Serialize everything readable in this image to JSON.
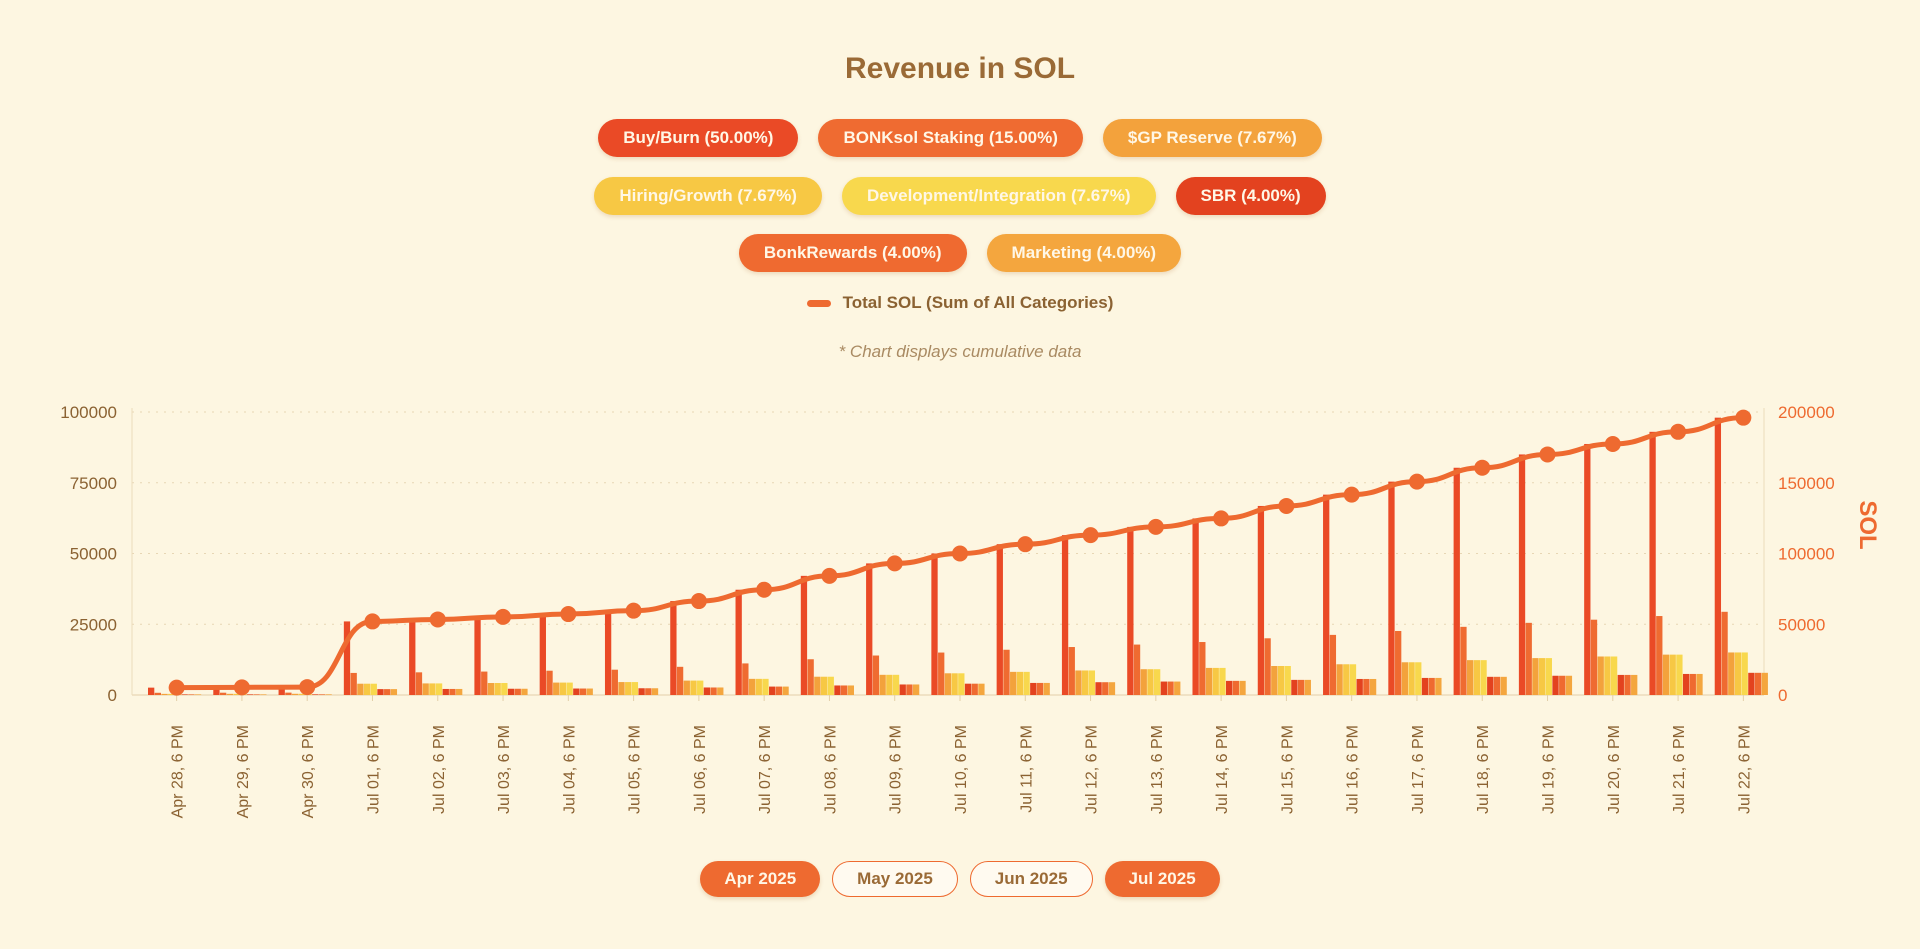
{
  "header": {
    "note": "* Chart displays cumulative data"
  },
  "legend": {
    "items": [
      {
        "label": "Buy/Burn (50.00%)",
        "color": "#ea4a26"
      },
      {
        "label": "BONKsol Staking (15.00%)",
        "color": "#ef6b31"
      },
      {
        "label": "$GP Reserve (7.67%)",
        "color": "#f3a23c"
      },
      {
        "label": "Hiring/Growth (7.67%)",
        "color": "#f7c844"
      },
      {
        "label": "Development/Integration (7.67%)",
        "color": "#f8d84d"
      },
      {
        "label": "SBR (4.00%)",
        "color": "#e3421f"
      },
      {
        "label": "BonkRewards (4.00%)",
        "color": "#ef6a30"
      },
      {
        "label": "Marketing (4.00%)",
        "color": "#f4a63e"
      }
    ],
    "total_label": "Total SOL (Sum of All Categories)",
    "total_color": "#ee6a30"
  },
  "month_filters": [
    {
      "label": "Apr 2025",
      "active": true
    },
    {
      "label": "May 2025",
      "active": false
    },
    {
      "label": "Jun 2025",
      "active": false
    },
    {
      "label": "Jul 2025",
      "active": true
    }
  ],
  "chart_data": {
    "type": "bar",
    "title": "Revenue in SOL",
    "cumulative": true,
    "categories": [
      "Apr 28, 6 PM",
      "Apr 29, 6 PM",
      "Apr 30, 6 PM",
      "Jul 01, 6 PM",
      "Jul 02, 6 PM",
      "Jul 03, 6 PM",
      "Jul 04, 6 PM",
      "Jul 05, 6 PM",
      "Jul 06, 6 PM",
      "Jul 07, 6 PM",
      "Jul 08, 6 PM",
      "Jul 09, 6 PM",
      "Jul 10, 6 PM",
      "Jul 11, 6 PM",
      "Jul 12, 6 PM",
      "Jul 13, 6 PM",
      "Jul 14, 6 PM",
      "Jul 15, 6 PM",
      "Jul 16, 6 PM",
      "Jul 17, 6 PM",
      "Jul 18, 6 PM",
      "Jul 19, 6 PM",
      "Jul 20, 6 PM",
      "Jul 21, 6 PM",
      "Jul 22, 6 PM"
    ],
    "y_left": {
      "range": [
        0,
        100000
      ],
      "ticks": [
        "0",
        "25000",
        "50000",
        "75000",
        "100000"
      ]
    },
    "y_right": {
      "label": "SOL",
      "range": [
        0,
        200000
      ],
      "ticks": [
        "0",
        "50000",
        "100000",
        "150000",
        "200000"
      ]
    },
    "grid": true,
    "series": [
      {
        "name": "Buy/Burn (50.00%)",
        "axis": "left",
        "color": "#ea4a26",
        "values": [
          2600,
          2700,
          2800,
          26000,
          26700,
          27600,
          28600,
          29800,
          33200,
          37200,
          42100,
          46500,
          50000,
          53300,
          56500,
          59400,
          62400,
          66800,
          70800,
          75400,
          80300,
          85000,
          88700,
          93000,
          98000
        ]
      },
      {
        "name": "BONKsol Staking (15.00%)",
        "axis": "left",
        "color": "#ef6b31",
        "values": [
          780,
          810,
          840,
          7800,
          8010,
          8280,
          8580,
          8940,
          9960,
          11160,
          12630,
          13950,
          15000,
          15990,
          16950,
          17820,
          18720,
          20040,
          21240,
          22620,
          24090,
          25500,
          26610,
          27900,
          29400
        ]
      },
      {
        "name": "$GP Reserve (7.67%)",
        "axis": "left",
        "color": "#f3a23c",
        "values": [
          399,
          414,
          429,
          3988,
          4095,
          4234,
          4387,
          4571,
          5092,
          5706,
          6458,
          7133,
          7670,
          8176,
          8667,
          9112,
          9572,
          10247,
          10861,
          11566,
          12318,
          13039,
          13607,
          14266,
          15032
        ]
      },
      {
        "name": "Hiring/Growth (7.67%)",
        "axis": "left",
        "color": "#f7c844",
        "values": [
          399,
          414,
          429,
          3988,
          4095,
          4234,
          4387,
          4571,
          5092,
          5706,
          6458,
          7133,
          7670,
          8176,
          8667,
          9112,
          9572,
          10247,
          10861,
          11566,
          12318,
          13039,
          13607,
          14266,
          15032
        ]
      },
      {
        "name": "Development/Integration (7.67%)",
        "axis": "left",
        "color": "#f8d84d",
        "values": [
          399,
          414,
          429,
          3988,
          4095,
          4234,
          4387,
          4571,
          5092,
          5706,
          6458,
          7133,
          7670,
          8176,
          8667,
          9112,
          9572,
          10247,
          10861,
          11566,
          12318,
          13039,
          13607,
          14266,
          15032
        ]
      },
      {
        "name": "SBR (4.00%)",
        "axis": "left",
        "color": "#e3421f",
        "values": [
          208,
          216,
          224,
          2080,
          2136,
          2208,
          2288,
          2384,
          2656,
          2976,
          3368,
          3720,
          4000,
          4264,
          4520,
          4752,
          4992,
          5344,
          5664,
          6032,
          6424,
          6800,
          7096,
          7440,
          7840
        ]
      },
      {
        "name": "BonkRewards (4.00%)",
        "axis": "left",
        "color": "#ef6a30",
        "values": [
          208,
          216,
          224,
          2080,
          2136,
          2208,
          2288,
          2384,
          2656,
          2976,
          3368,
          3720,
          4000,
          4264,
          4520,
          4752,
          4992,
          5344,
          5664,
          6032,
          6424,
          6800,
          7096,
          7440,
          7840
        ]
      },
      {
        "name": "Marketing (4.00%)",
        "axis": "left",
        "color": "#f4a63e",
        "values": [
          208,
          216,
          224,
          2080,
          2136,
          2208,
          2288,
          2384,
          2656,
          2976,
          3368,
          3720,
          4000,
          4264,
          4520,
          4752,
          4992,
          5344,
          5664,
          6032,
          6424,
          6800,
          7096,
          7440,
          7840
        ]
      },
      {
        "name": "Total SOL (Sum of All Categories)",
        "type": "line",
        "axis": "right",
        "color": "#ee6a30",
        "values": [
          5200,
          5400,
          5600,
          52000,
          53400,
          55200,
          57200,
          59600,
          66400,
          74400,
          84200,
          93000,
          100000,
          106600,
          113000,
          118800,
          124800,
          133600,
          141600,
          150800,
          160600,
          170000,
          177400,
          186000,
          196000
        ]
      }
    ]
  }
}
